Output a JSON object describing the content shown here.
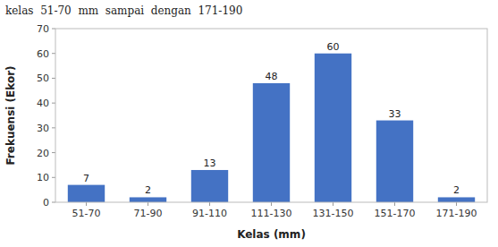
{
  "chart_data": {
    "type": "bar",
    "title": "kelas  51-70  mm  sampai  dengan  171-190",
    "categories": [
      "51-70",
      "71-90",
      "91-110",
      "111-130",
      "131-150",
      "151-170",
      "171-190"
    ],
    "values": [
      7,
      2,
      13,
      48,
      60,
      33,
      2
    ],
    "color": "#4472C4",
    "xlabel": "Kelas (mm)",
    "ylabel": "Frekuensi (Ekor)",
    "ylim": [
      0,
      70
    ],
    "yticks": [
      0,
      10,
      20,
      30,
      40,
      50,
      60,
      70
    ],
    "grid": false,
    "data_labels": true
  }
}
